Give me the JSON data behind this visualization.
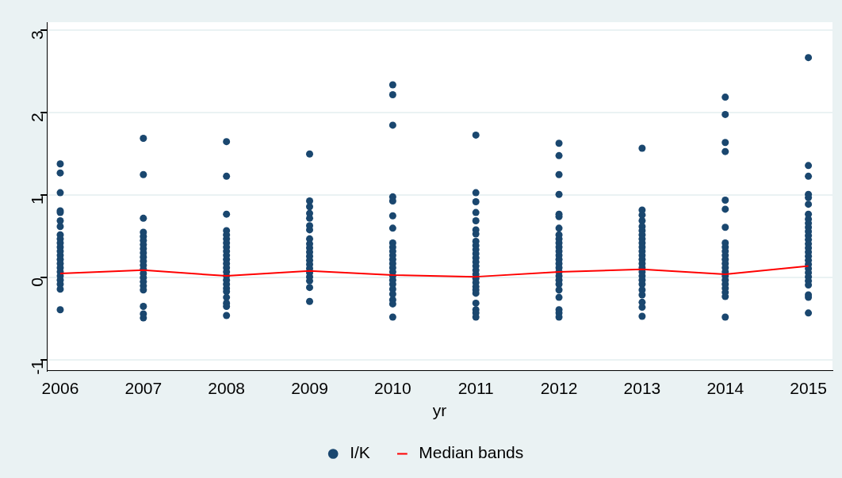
{
  "chart_data": {
    "type": "scatter",
    "xlabel": "yr",
    "xlim": [
      2005.84,
      2015.29
    ],
    "xticks": [
      2006,
      2007,
      2008,
      2009,
      2010,
      2011,
      2012,
      2013,
      2014,
      2015
    ],
    "ylim": [
      -1.13,
      3.1
    ],
    "yticks": [
      -1,
      0,
      1,
      2,
      3
    ],
    "grid": "y",
    "legend": "bottom",
    "series": [
      {
        "name": "I/K",
        "type": "scatter",
        "marker": "circle",
        "color": "#1a476f",
        "x": [
          2006,
          2006,
          2006,
          2006,
          2006,
          2006,
          2006,
          2006,
          2006,
          2006,
          2006,
          2006,
          2006,
          2006,
          2006,
          2006,
          2006,
          2006,
          2006,
          2006,
          2006,
          2006,
          2007,
          2007,
          2007,
          2007,
          2007,
          2007,
          2007,
          2007,
          2007,
          2007,
          2007,
          2007,
          2007,
          2007,
          2007,
          2007,
          2007,
          2007,
          2007,
          2007,
          2007,
          2008,
          2008,
          2008,
          2008,
          2008,
          2008,
          2008,
          2008,
          2008,
          2008,
          2008,
          2008,
          2008,
          2008,
          2008,
          2008,
          2008,
          2008,
          2008,
          2008,
          2008,
          2008,
          2008,
          2009,
          2009,
          2009,
          2009,
          2009,
          2009,
          2009,
          2009,
          2009,
          2009,
          2009,
          2009,
          2009,
          2009,
          2009,
          2009,
          2009,
          2009,
          2009,
          2009,
          2010,
          2010,
          2010,
          2010,
          2010,
          2010,
          2010,
          2010,
          2010,
          2010,
          2010,
          2010,
          2010,
          2010,
          2010,
          2010,
          2010,
          2010,
          2010,
          2010,
          2010,
          2010,
          2010,
          2011,
          2011,
          2011,
          2011,
          2011,
          2011,
          2011,
          2011,
          2011,
          2011,
          2011,
          2011,
          2011,
          2011,
          2011,
          2011,
          2011,
          2011,
          2011,
          2011,
          2011,
          2011,
          2011,
          2011,
          2011,
          2012,
          2012,
          2012,
          2012,
          2012,
          2012,
          2012,
          2012,
          2012,
          2012,
          2012,
          2012,
          2012,
          2012,
          2012,
          2012,
          2012,
          2012,
          2012,
          2012,
          2012,
          2012,
          2012,
          2012,
          2012,
          2013,
          2013,
          2013,
          2013,
          2013,
          2013,
          2013,
          2013,
          2013,
          2013,
          2013,
          2013,
          2013,
          2013,
          2013,
          2013,
          2013,
          2013,
          2013,
          2013,
          2013,
          2013,
          2013,
          2013,
          2014,
          2014,
          2014,
          2014,
          2014,
          2014,
          2014,
          2014,
          2014,
          2014,
          2014,
          2014,
          2014,
          2014,
          2014,
          2014,
          2014,
          2014,
          2014,
          2014,
          2014,
          2014,
          2015,
          2015,
          2015,
          2015,
          2015,
          2015,
          2015,
          2015,
          2015,
          2015,
          2015,
          2015,
          2015,
          2015,
          2015,
          2015,
          2015,
          2015,
          2015,
          2015,
          2015,
          2015,
          2015,
          2015,
          2015,
          2015,
          2015
        ],
        "values": [
          1.38,
          1.27,
          1.03,
          0.81,
          0.79,
          0.69,
          0.62,
          0.52,
          0.47,
          0.42,
          0.37,
          0.32,
          0.27,
          0.22,
          0.17,
          0.12,
          0.07,
          0.02,
          -0.03,
          -0.08,
          -0.14,
          -0.39,
          1.69,
          1.25,
          0.72,
          0.55,
          0.5,
          0.45,
          0.4,
          0.35,
          0.3,
          0.25,
          0.2,
          0.15,
          0.1,
          0.05,
          0,
          -0.05,
          -0.1,
          -0.15,
          -0.35,
          -0.44,
          -0.49,
          1.65,
          1.23,
          0.77,
          0.57,
          0.52,
          0.47,
          0.42,
          0.37,
          0.32,
          0.27,
          0.22,
          0.17,
          0.12,
          0.07,
          0.02,
          -0.03,
          -0.08,
          -0.13,
          -0.17,
          -0.24,
          -0.31,
          -0.35,
          -0.46,
          1.5,
          0.93,
          0.86,
          0.78,
          0.72,
          0.63,
          0.58,
          0.47,
          0.41,
          0.36,
          0.31,
          0.26,
          0.21,
          0.16,
          0.11,
          0.06,
          0.01,
          -0.04,
          -0.12,
          -0.29,
          2.34,
          2.22,
          1.85,
          0.98,
          0.93,
          0.75,
          0.6,
          0.42,
          0.37,
          0.32,
          0.27,
          0.22,
          0.17,
          0.12,
          0.07,
          0.02,
          -0.03,
          -0.08,
          -0.14,
          -0.2,
          -0.27,
          -0.32,
          -0.48,
          1.73,
          1.03,
          0.92,
          0.79,
          0.69,
          0.58,
          0.53,
          0.44,
          0.39,
          0.34,
          0.29,
          0.24,
          0.19,
          0.14,
          0.09,
          0.04,
          -0.01,
          -0.06,
          -0.11,
          -0.15,
          -0.19,
          -0.31,
          -0.39,
          -0.43,
          -0.48,
          1.63,
          1.48,
          1.25,
          1.01,
          0.77,
          0.74,
          0.6,
          0.52,
          0.47,
          0.42,
          0.37,
          0.32,
          0.27,
          0.22,
          0.17,
          0.12,
          0.07,
          0.02,
          -0.03,
          -0.08,
          -0.15,
          -0.24,
          -0.39,
          -0.43,
          -0.48,
          1.57,
          0.82,
          0.76,
          0.69,
          0.62,
          0.57,
          0.52,
          0.47,
          0.42,
          0.37,
          0.32,
          0.27,
          0.22,
          0.17,
          0.12,
          0.07,
          0.02,
          -0.03,
          -0.08,
          -0.15,
          -0.21,
          -0.3,
          -0.36,
          -0.47,
          2.19,
          1.98,
          1.64,
          1.53,
          0.94,
          0.83,
          0.61,
          0.42,
          0.37,
          0.32,
          0.27,
          0.22,
          0.17,
          0.12,
          0.07,
          0.02,
          -0.03,
          -0.08,
          -0.13,
          -0.18,
          -0.23,
          -0.48,
          2.67,
          1.36,
          1.23,
          1.01,
          0.97,
          0.89,
          0.77,
          0.71,
          0.66,
          0.61,
          0.56,
          0.51,
          0.46,
          0.41,
          0.36,
          0.31,
          0.26,
          0.21,
          0.16,
          0.11,
          0.06,
          0.01,
          -0.04,
          -0.09,
          -0.21,
          -0.24,
          -0.43
        ]
      },
      {
        "name": "Median bands",
        "type": "line",
        "marker": "none",
        "color": "#ff0000",
        "x": [
          2006,
          2007,
          2008,
          2009,
          2010,
          2011,
          2012,
          2013,
          2014,
          2015
        ],
        "values": [
          0.05,
          0.09,
          0.02,
          0.08,
          0.03,
          0.01,
          0.07,
          0.1,
          0.04,
          0.14
        ]
      }
    ]
  }
}
